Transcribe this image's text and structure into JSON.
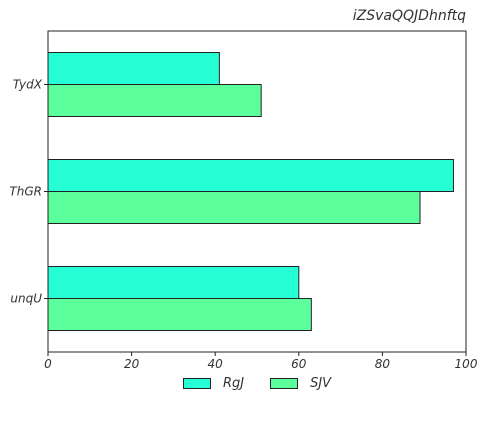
{
  "chart_data": {
    "type": "bar",
    "orientation": "horizontal",
    "title": "iZSvaQQJDhnftq",
    "categories": [
      "TydX",
      "ThGR",
      "unqU"
    ],
    "series": [
      {
        "name": "RgJ",
        "color": "#26ffd6",
        "values": [
          41,
          97,
          60
        ]
      },
      {
        "name": "SJV",
        "color": "#5bff9c",
        "values": [
          51,
          89,
          63
        ]
      }
    ],
    "xlim": [
      0,
      100
    ],
    "xticks": [
      0,
      20,
      40,
      60,
      80,
      100
    ],
    "xlabel": "",
    "ylabel": "",
    "grid": false,
    "legend_position": "bottom-center"
  }
}
